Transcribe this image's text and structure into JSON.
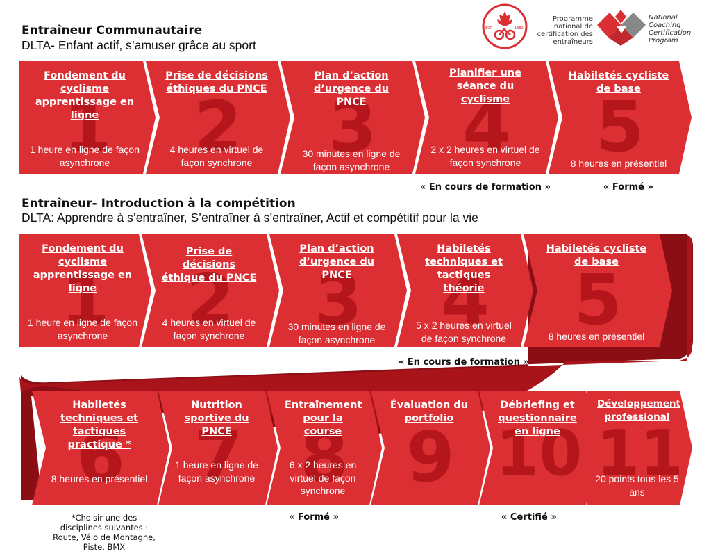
{
  "section1": {
    "title": "Entraîneur Communautaire",
    "subtitle": "DLTA- Enfant actif, s’amuser grâce au sport",
    "steps": [
      {
        "number": "1",
        "title": "Fondement du cyclisme apprentissage en ligne",
        "duration": "1 heure en ligne de façon asynchrone"
      },
      {
        "number": "2",
        "title": "Prise de décisions éthiques du PNCE",
        "duration": "4 heures en virtuel de façon synchrone"
      },
      {
        "number": "3",
        "title": "Plan d’action d’urgence du PNCE",
        "duration": "30 minutes en ligne de façon asynchrone"
      },
      {
        "number": "4",
        "title": "Planifier une séance du cyclisme",
        "duration": "2 x 2 heures en virtuel de façon synchrone"
      },
      {
        "number": "5",
        "title": "Habiletés cycliste de base",
        "duration": "8 heures en présentiel"
      }
    ],
    "notes": {
      "in_training": "« En cours de formation »",
      "trained": "« Formé »"
    }
  },
  "section2": {
    "title": "Entraîneur- Introduction à la compétition",
    "subtitle": "DLTA: Apprendre à s’entraîner, S’entraîner à s’entraîner, Actif et compétitif pour la vie",
    "steps": [
      {
        "number": "1",
        "title": "Fondement du cyclisme apprentissage en ligne",
        "duration": "1 heure en ligne de façon asynchrone"
      },
      {
        "number": "2",
        "title": "Prise de décisions éthique du PNCE",
        "duration": "4 heures en virtuel de façon synchrone"
      },
      {
        "number": "3",
        "title": "Plan d’action d’urgence du PNCE",
        "duration": "30 minutes en ligne de façon asynchrone"
      },
      {
        "number": "4",
        "title": "Habiletés techniques et tactiques théorie",
        "duration": "5 x 2 heures en virtuel de façon synchrone"
      },
      {
        "number": "5",
        "title": "Habiletés cycliste de base",
        "duration": "8 heures en présentiel"
      },
      {
        "number": "6",
        "title": "Habiletés techniques et tactiques practique *",
        "duration": "8 heures en présentiel"
      },
      {
        "number": "7",
        "title": "Nutrition sportive du PNCE",
        "duration": "1 heure en ligne de façon asynchrone"
      },
      {
        "number": "8",
        "title": "Entraînement pour la course",
        "duration": "6 x 2 heures en virtuel de façon synchrone"
      },
      {
        "number": "9",
        "title": "Évaluation du portfolio",
        "duration": ""
      },
      {
        "number": "10",
        "title": "Débriefing et questionnaire en ligne",
        "duration": ""
      },
      {
        "number": "11",
        "title": "Développement professional",
        "duration": "20 points tous les 5 ans"
      }
    ],
    "notes": {
      "in_training": "« En cours de formation »",
      "trained": "« Formé »",
      "certified": "« Certifié »"
    },
    "footnote": "*Choisir une des disciplines suivantes : Route, Vélo de Montagne, Piste, BMX"
  },
  "logo": {
    "est_left": "EST.",
    "est_right": "1882",
    "fr_text": "Programme national de certification des entraîneurs",
    "en_text": "National Coaching Certification Program"
  },
  "colors": {
    "red": "#dc2f33",
    "dark_red": "#a8141a",
    "band": "#960f14",
    "text": "#111111"
  }
}
